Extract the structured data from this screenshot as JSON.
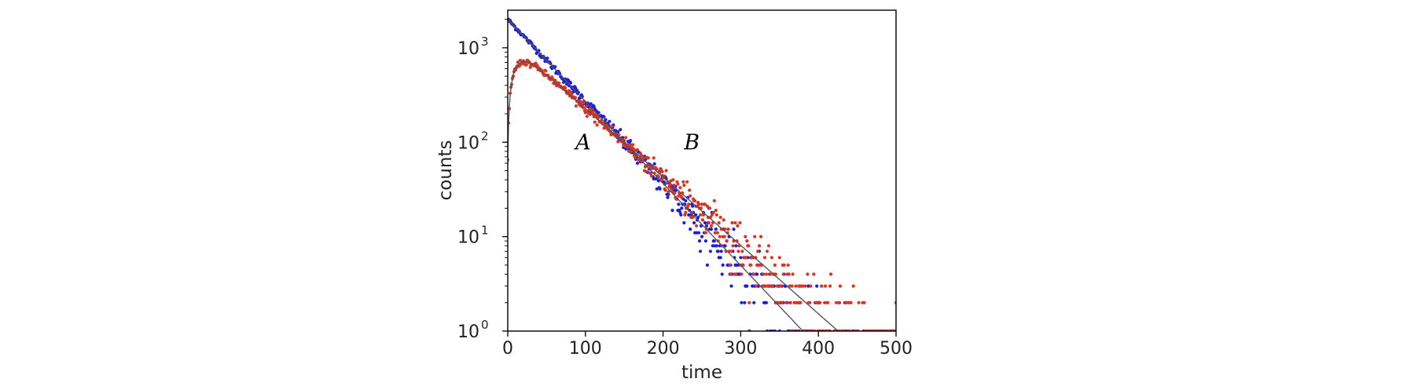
{
  "chart_data": {
    "type": "scatter",
    "title": "",
    "xlabel": "time",
    "ylabel": "counts",
    "xscale": "linear",
    "yscale": "log",
    "xlim": [
      0,
      500
    ],
    "ylim": [
      1,
      2500
    ],
    "xticks": [
      0,
      100,
      200,
      300,
      400,
      500
    ],
    "xtick_labels": [
      "0",
      "100",
      "200",
      "300",
      "400",
      "500"
    ],
    "yticks": [
      {
        "value": 1,
        "base": "10",
        "exp": "0"
      },
      {
        "value": 10,
        "base": "10",
        "exp": "1"
      },
      {
        "value": 100,
        "base": "10",
        "exp": "2"
      },
      {
        "value": 1000,
        "base": "10",
        "exp": "3"
      }
    ],
    "grid": false,
    "series": [
      {
        "name": "A",
        "color": "#1f1fd8",
        "model": "single-exponential decay",
        "params": {
          "N0": 2000,
          "tau": 50
        },
        "t_range": [
          0,
          500
        ],
        "approx_points": [
          [
            0,
            2000
          ],
          [
            50,
            740
          ],
          [
            100,
            270
          ],
          [
            150,
            100
          ],
          [
            200,
            37
          ],
          [
            250,
            13.5
          ],
          [
            300,
            5
          ],
          [
            350,
            1.8
          ]
        ]
      },
      {
        "name": "B",
        "color": "#dd3322",
        "model": "growth-decay (daughter)",
        "params": {
          "N0": 2000,
          "tau_fast": 10,
          "tau_slow": 60
        },
        "t_range": [
          0,
          500
        ],
        "approx_points": [
          [
            0,
            70
          ],
          [
            10,
            640
          ],
          [
            40,
            960
          ],
          [
            100,
            550
          ],
          [
            150,
            240
          ],
          [
            200,
            100
          ],
          [
            250,
            43
          ],
          [
            300,
            19
          ],
          [
            350,
            8
          ],
          [
            400,
            3.4
          ]
        ]
      }
    ],
    "fit_lines": [
      {
        "name": "fit-A",
        "color": "#555555",
        "follows": "A"
      },
      {
        "name": "fit-B",
        "color": "#555555",
        "follows": "B"
      }
    ],
    "annotations": [
      {
        "text": "A",
        "x": 97,
        "y": 100
      },
      {
        "text": "B",
        "x": 237,
        "y": 100
      }
    ]
  }
}
